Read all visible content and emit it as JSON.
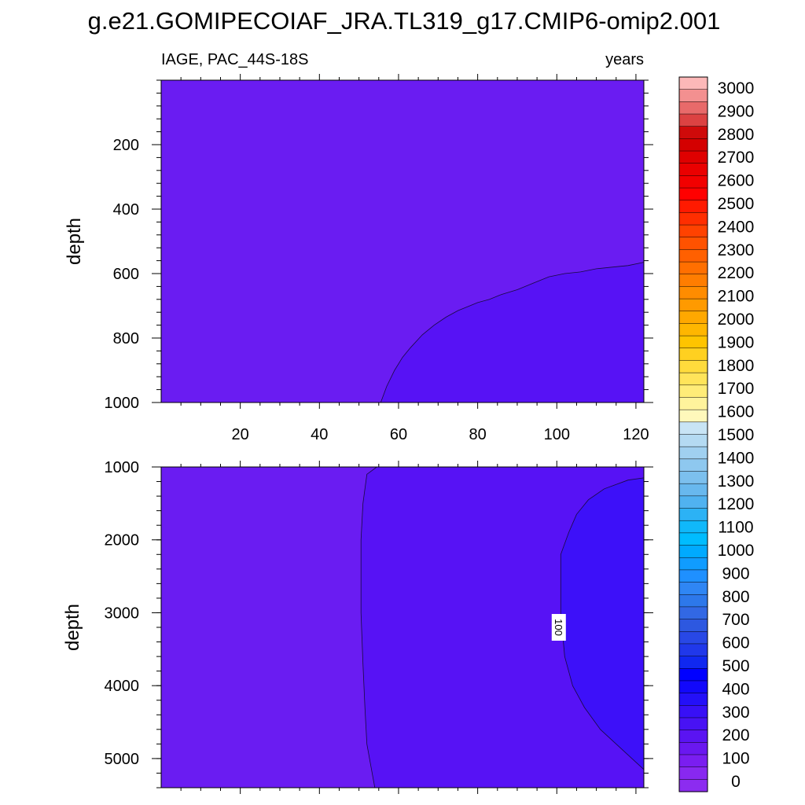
{
  "page_title": "g.e21.GOMIPECOIAF_JRA.TL319_g17.CMIP6-omip2.001",
  "chart_data": [
    {
      "type": "contour",
      "panel": "upper",
      "variable_label": "IAGE, PAC_44S-18S",
      "units_label": "years",
      "xlabel": "",
      "ylabel": "depth",
      "xlim": [
        0,
        122
      ],
      "ylim": [
        1000,
        0
      ],
      "xticks": [
        20,
        40,
        60,
        80,
        100,
        120
      ],
      "yticks": [
        200,
        400,
        600,
        800,
        1000
      ],
      "contour_boundary_100yr": {
        "x": [
          55.5,
          57,
          59,
          61,
          63,
          66,
          69,
          72,
          75,
          78,
          80,
          83,
          86,
          90,
          94,
          98,
          102,
          106,
          110,
          114,
          118,
          122
        ],
        "depth": [
          1000,
          950,
          900,
          860,
          830,
          790,
          760,
          735,
          715,
          700,
          690,
          680,
          665,
          650,
          630,
          610,
          600,
          595,
          585,
          580,
          575,
          565
        ]
      },
      "regions": [
        {
          "range": "0-100",
          "color": "#6a1cf2"
        },
        {
          "range": "100-200",
          "color": "#5712f5"
        }
      ]
    },
    {
      "type": "contour",
      "panel": "lower",
      "xlabel": "",
      "ylabel": "depth",
      "xlim": [
        0,
        122
      ],
      "ylim": [
        5400,
        1000
      ],
      "xticks": [
        20,
        40,
        60,
        80,
        100,
        120
      ],
      "yticks": [
        1000,
        2000,
        3000,
        4000,
        5000
      ],
      "contour_boundary_100yr": {
        "x": [
          54.5,
          52,
          51,
          50.5,
          50.5,
          51,
          51.5,
          52,
          53,
          54
        ],
        "depth": [
          1000,
          1100,
          1500,
          2000,
          3000,
          3700,
          4300,
          4800,
          5100,
          5400
        ]
      },
      "contour_boundary_200yr": {
        "x": [
          122,
          118,
          112,
          108,
          105,
          103,
          101,
          101,
          102,
          104,
          107,
          111,
          115,
          119,
          122
        ],
        "depth": [
          1150,
          1180,
          1300,
          1450,
          1650,
          1900,
          2200,
          3000,
          3600,
          4000,
          4300,
          4600,
          4800,
          5000,
          5150
        ]
      },
      "contour_labels": [
        {
          "text": "100",
          "x": 100.5,
          "depth": 3200
        }
      ],
      "regions": [
        {
          "range": "0-100",
          "color": "#6a1cf2"
        },
        {
          "range": "100-200",
          "color": "#5712f5"
        },
        {
          "range": "200-300",
          "color": "#3d10f9"
        }
      ]
    }
  ],
  "colorbar": {
    "labels": [
      "3000",
      "2900",
      "2800",
      "2700",
      "2600",
      "2500",
      "2400",
      "2300",
      "2200",
      "2100",
      "2000",
      "1900",
      "1800",
      "1700",
      "1600",
      "1500",
      "1400",
      "1300",
      "1200",
      "1100",
      "1000",
      "900",
      "800",
      "700",
      "600",
      "500",
      "400",
      "300",
      "200",
      "100",
      "0"
    ],
    "colors": [
      "#fcb8b8",
      "#f39090",
      "#e86a6a",
      "#dc4242",
      "#cf0a0a",
      "#d40000",
      "#df0000",
      "#ea0000",
      "#f20000",
      "#ff0000",
      "#ff1a00",
      "#ff2e00",
      "#ff4200",
      "#ff5200",
      "#ff6000",
      "#ff6f00",
      "#ff7d00",
      "#ff8c00",
      "#ff9a00",
      "#ffa800",
      "#ffb600",
      "#ffc400",
      "#ffd020",
      "#ffdb3c",
      "#ffe45a",
      "#ffec78",
      "#fff39c",
      "#fff8bb",
      "#c8e4f5",
      "#b4daf2",
      "#a0d0f0",
      "#8ec8ef",
      "#7cc0ee",
      "#68b8ee",
      "#50b2f0",
      "#2cb2f5",
      "#10b8fa",
      "#00bcff",
      "#00aaff",
      "#109cff",
      "#1f90ff",
      "#2f86f4",
      "#2d78ea",
      "#3268e4",
      "#2d58e0",
      "#2848e6",
      "#2038ea",
      "#1028f0",
      "#0000ff",
      "#1208fb",
      "#2410f8",
      "#3810f6",
      "#4812f4",
      "#5a14f2",
      "#6a18f0",
      "#7a1ef0",
      "#8828f0",
      "#8c2cf0"
    ]
  }
}
